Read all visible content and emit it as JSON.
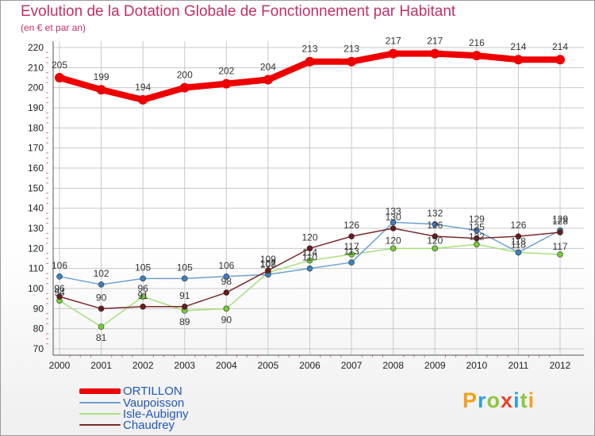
{
  "title": "Evolution de la Dotation Globale de Fonctionnement par Habitant",
  "subtitle": "(en € et par an)",
  "brand": {
    "letters": [
      "P",
      "r",
      "o",
      "x",
      "i",
      "t",
      "i"
    ],
    "colors": [
      "#f0a020",
      "#2f9fd8",
      "#8cc63e",
      "#e8432c",
      "#2f9fd8",
      "#8cc63e",
      "#f0a020"
    ]
  },
  "chart_data": {
    "type": "line",
    "title": "Evolution de la Dotation Globale de Fonctionnement par Habitant",
    "subtitle": "(en € et par an)",
    "xlabel": "",
    "ylabel": "",
    "x": [
      "2000",
      "2001",
      "2002",
      "2003",
      "2004",
      "2005",
      "2006",
      "2007",
      "2008",
      "2009",
      "2010",
      "2011",
      "2012"
    ],
    "ylim": [
      70,
      220
    ],
    "yticks": [
      "70",
      "80",
      "90",
      "100",
      "110",
      "120",
      "130",
      "140",
      "150",
      "160",
      "170",
      "180",
      "190",
      "200",
      "210",
      "220"
    ],
    "grid": true,
    "legend_position": "bottom-left",
    "series": [
      {
        "name": "ORTILLON",
        "color": "#ee0000",
        "values": [
          205,
          199,
          194,
          200,
          202,
          204,
          213,
          213,
          217,
          217,
          216,
          214,
          214
        ],
        "labels": [
          "205",
          "199",
          "194",
          "200",
          "202",
          "204",
          "213",
          "213",
          "217",
          "217",
          "216",
          "214",
          "214"
        ]
      },
      {
        "name": "Vaupoisson",
        "color": "#6fa0d0",
        "marker_color": "#3d7fc0",
        "values": [
          106,
          102,
          105,
          105,
          106,
          107,
          110,
          113,
          133,
          132,
          129,
          118,
          129
        ],
        "labels": [
          "106",
          "102",
          "105",
          "105",
          "106",
          "107",
          "110",
          "113",
          "133",
          "132",
          "129",
          "118",
          "129"
        ]
      },
      {
        "name": "Isle-Aubigny",
        "color": "#a6e07a",
        "marker_color": "#74cc3a",
        "values": [
          94,
          81,
          96,
          89,
          90,
          108,
          114,
          117,
          120,
          120,
          122,
          118,
          117
        ],
        "labels": [
          "94",
          "81",
          "96",
          "89",
          "90",
          "108",
          "114",
          "117",
          "120",
          "120",
          "122",
          "118",
          "117"
        ]
      },
      {
        "name": "Chaudrey",
        "color": "#7a2a2a",
        "marker_color": "#6a1a1a",
        "values": [
          96,
          90,
          91,
          91,
          98,
          109,
          120,
          126,
          130,
          126,
          125,
          126,
          128
        ],
        "labels": [
          "96",
          "90",
          "91",
          "91",
          "98",
          "109",
          "120",
          "126",
          "130",
          "126",
          "125",
          "126",
          "128"
        ]
      }
    ]
  }
}
